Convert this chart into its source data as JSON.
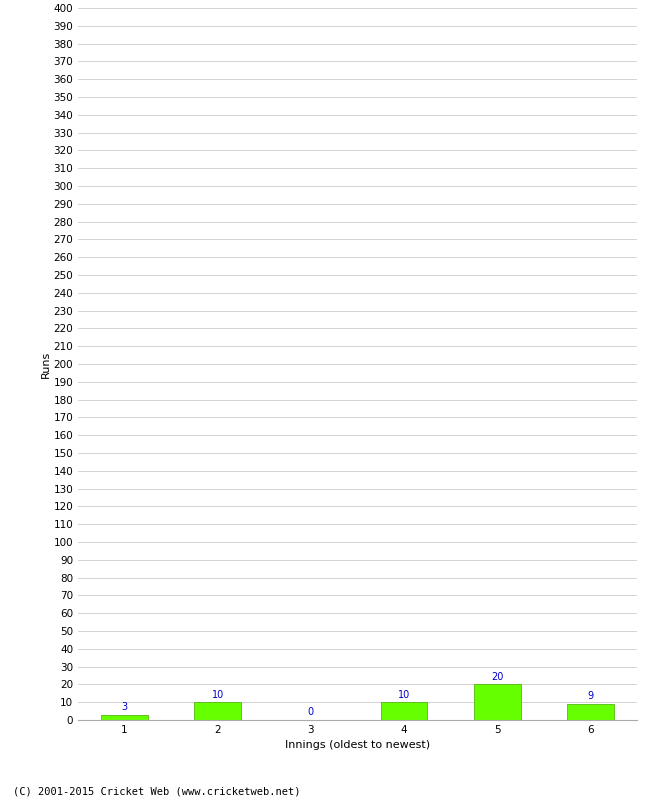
{
  "categories": [
    1,
    2,
    3,
    4,
    5,
    6
  ],
  "values": [
    3,
    10,
    0,
    10,
    20,
    9
  ],
  "bar_color": "#66ff00",
  "bar_edge_color": "#44aa00",
  "ylabel": "Runs",
  "xlabel": "Innings (oldest to newest)",
  "ylim": [
    0,
    400
  ],
  "ytick_step": 10,
  "value_color": "#0000cc",
  "value_fontsize": 7,
  "footer": "(C) 2001-2015 Cricket Web (www.cricketweb.net)",
  "footer_fontsize": 7.5,
  "background_color": "#ffffff",
  "grid_color": "#cccccc",
  "xlabel_fontsize": 8,
  "ylabel_fontsize": 8,
  "tick_fontsize": 7.5
}
